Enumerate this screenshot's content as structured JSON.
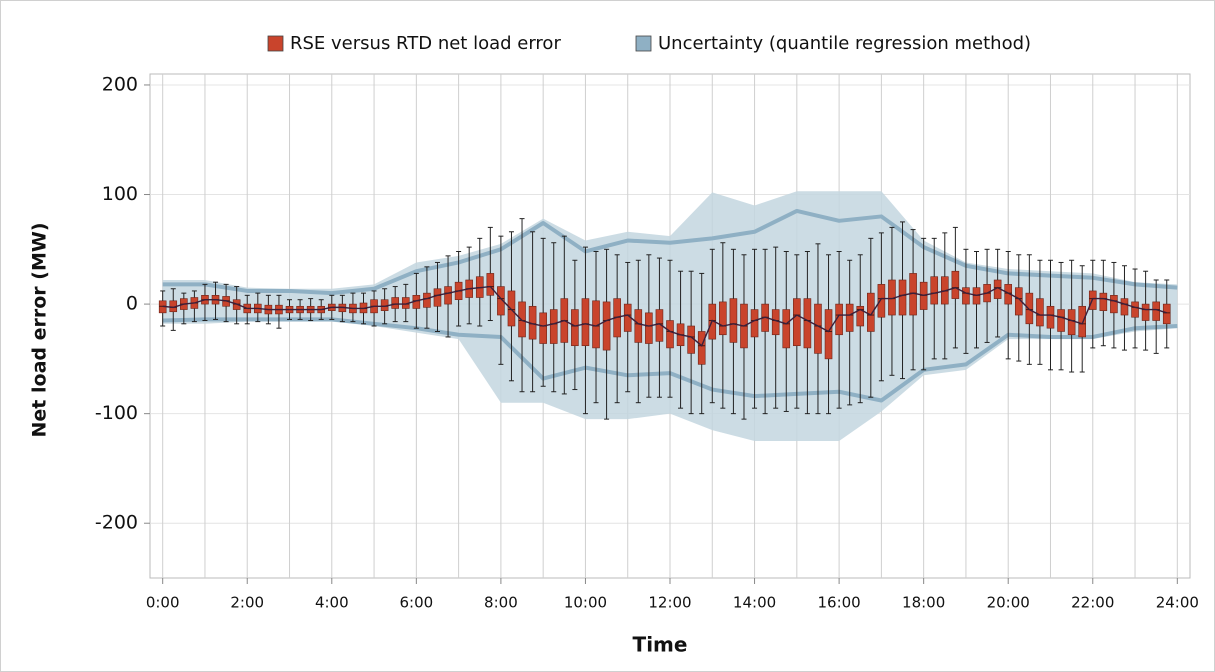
{
  "chart_data": {
    "type": "box",
    "xlabel": "Time",
    "ylabel": "Net load error (MW)",
    "xlim": [
      -0.3,
      24.3
    ],
    "ylim": [
      -250,
      210
    ],
    "xticks": [
      {
        "value": 0,
        "label": "0:00"
      },
      {
        "value": 2,
        "label": "2:00"
      },
      {
        "value": 4,
        "label": "4:00"
      },
      {
        "value": 6,
        "label": "6:00"
      },
      {
        "value": 8,
        "label": "8:00"
      },
      {
        "value": 10,
        "label": "10:00"
      },
      {
        "value": 12,
        "label": "12:00"
      },
      {
        "value": 14,
        "label": "14:00"
      },
      {
        "value": 16,
        "label": "16:00"
      },
      {
        "value": 18,
        "label": "18:00"
      },
      {
        "value": 20,
        "label": "20:00"
      },
      {
        "value": 22,
        "label": "22:00"
      },
      {
        "value": 24,
        "label": "24:00"
      }
    ],
    "xminorticks": [
      1,
      3,
      5,
      7,
      9,
      11,
      13,
      15,
      17,
      19,
      21,
      23
    ],
    "yticks": [
      -200,
      -100,
      0,
      100,
      200
    ],
    "grid": true,
    "legend": "top",
    "series": [
      {
        "name": "RSE versus RTD net load error",
        "color": "#c9442c",
        "x": [
          0,
          0.25,
          0.5,
          0.75,
          1,
          1.25,
          1.5,
          1.75,
          2,
          2.25,
          2.5,
          2.75,
          3,
          3.25,
          3.5,
          3.75,
          4,
          4.25,
          4.5,
          4.75,
          5,
          5.25,
          5.5,
          5.75,
          6,
          6.25,
          6.5,
          6.75,
          7,
          7.25,
          7.5,
          7.75,
          8,
          8.25,
          8.5,
          8.75,
          9,
          9.25,
          9.5,
          9.75,
          10,
          10.25,
          10.5,
          10.75,
          11,
          11.25,
          11.5,
          11.75,
          12,
          12.25,
          12.5,
          12.75,
          13,
          13.25,
          13.5,
          13.75,
          14,
          14.25,
          14.5,
          14.75,
          15,
          15.25,
          15.5,
          15.75,
          16,
          16.25,
          16.5,
          16.75,
          17,
          17.25,
          17.5,
          17.75,
          18,
          18.25,
          18.5,
          18.75,
          19,
          19.25,
          19.5,
          19.75,
          20,
          20.25,
          20.5,
          20.75,
          21,
          21.25,
          21.5,
          21.75,
          22,
          22.25,
          22.5,
          22.75,
          23,
          23.25,
          23.5,
          23.75
        ],
        "whislo": [
          -20,
          -24,
          -18,
          -16,
          -15,
          -14,
          -16,
          -18,
          -18,
          -16,
          -18,
          -22,
          -14,
          -14,
          -15,
          -14,
          -14,
          -16,
          -16,
          -18,
          -20,
          -18,
          -16,
          -16,
          -22,
          -22,
          -25,
          -30,
          -20,
          -18,
          -20,
          -15,
          -55,
          -70,
          -80,
          -80,
          -75,
          -80,
          -82,
          -78,
          -100,
          -90,
          -105,
          -90,
          -80,
          -90,
          -85,
          -85,
          -85,
          -95,
          -100,
          -100,
          -90,
          -95,
          -100,
          -105,
          -95,
          -100,
          -95,
          -98,
          -95,
          -100,
          -100,
          -100,
          -95,
          -92,
          -90,
          -85,
          -70,
          -65,
          -68,
          -60,
          -60,
          -50,
          -50,
          -40,
          -45,
          -40,
          -35,
          -30,
          -50,
          -52,
          -55,
          -55,
          -60,
          -60,
          -62,
          -62,
          -40,
          -38,
          -40,
          -42,
          -40,
          -42,
          -45,
          -40
        ],
        "q1": [
          -8,
          -7,
          -5,
          -4,
          0,
          0,
          -2,
          -5,
          -8,
          -8,
          -9,
          -9,
          -8,
          -8,
          -8,
          -8,
          -6,
          -7,
          -8,
          -8,
          -8,
          -6,
          -4,
          -4,
          -4,
          -3,
          -2,
          0,
          4,
          6,
          6,
          8,
          -10,
          -20,
          -30,
          -32,
          -36,
          -36,
          -35,
          -38,
          -38,
          -40,
          -42,
          -30,
          -25,
          -35,
          -36,
          -34,
          -40,
          -38,
          -45,
          -55,
          -32,
          -28,
          -35,
          -40,
          -30,
          -25,
          -28,
          -40,
          -38,
          -40,
          -45,
          -50,
          -28,
          -25,
          -20,
          -25,
          -12,
          -10,
          -10,
          -10,
          -5,
          0,
          0,
          5,
          0,
          0,
          2,
          5,
          0,
          -10,
          -18,
          -20,
          -22,
          -25,
          -28,
          -30,
          -5,
          -6,
          -8,
          -10,
          -12,
          -15,
          -15,
          -18
        ],
        "med": [
          -2,
          -3,
          0,
          1,
          4,
          4,
          3,
          0,
          -4,
          -4,
          -5,
          -5,
          -5,
          -5,
          -5,
          -5,
          -3,
          -3,
          -4,
          -4,
          -2,
          -2,
          0,
          0,
          3,
          5,
          8,
          10,
          12,
          14,
          15,
          16,
          5,
          -5,
          -15,
          -18,
          -20,
          -18,
          -15,
          -20,
          -18,
          -20,
          -15,
          -12,
          -10,
          -18,
          -20,
          -18,
          -25,
          -28,
          -30,
          -38,
          -15,
          -20,
          -18,
          -20,
          -15,
          -12,
          -15,
          -18,
          -10,
          -15,
          -20,
          -25,
          -10,
          -10,
          -5,
          -10,
          5,
          5,
          8,
          10,
          8,
          10,
          12,
          15,
          10,
          8,
          10,
          15,
          10,
          5,
          -5,
          -10,
          -10,
          -12,
          -15,
          -18,
          5,
          5,
          3,
          0,
          -3,
          -5,
          -5,
          -8
        ],
        "q3": [
          3,
          3,
          5,
          6,
          8,
          8,
          7,
          4,
          0,
          0,
          -1,
          -1,
          -2,
          -2,
          -2,
          -2,
          0,
          0,
          0,
          1,
          4,
          4,
          6,
          6,
          8,
          10,
          14,
          16,
          20,
          22,
          25,
          28,
          16,
          12,
          2,
          -2,
          -8,
          -5,
          5,
          -5,
          5,
          3,
          2,
          5,
          0,
          -5,
          -8,
          -5,
          -15,
          -18,
          -20,
          -25,
          0,
          2,
          5,
          0,
          -5,
          0,
          -5,
          -5,
          5,
          5,
          0,
          -5,
          0,
          0,
          -2,
          10,
          18,
          22,
          22,
          28,
          20,
          25,
          25,
          30,
          15,
          15,
          18,
          22,
          18,
          15,
          10,
          5,
          -2,
          -5,
          -5,
          -2,
          12,
          10,
          8,
          5,
          2,
          0,
          2,
          0
        ],
        "whishi": [
          12,
          14,
          10,
          12,
          18,
          20,
          18,
          16,
          8,
          10,
          8,
          8,
          4,
          4,
          5,
          4,
          8,
          8,
          10,
          10,
          12,
          14,
          16,
          18,
          28,
          34,
          38,
          44,
          48,
          52,
          60,
          70,
          62,
          66,
          78,
          66,
          60,
          56,
          62,
          40,
          52,
          48,
          50,
          45,
          38,
          40,
          45,
          42,
          40,
          30,
          30,
          28,
          50,
          56,
          50,
          45,
          50,
          50,
          52,
          48,
          45,
          48,
          55,
          45,
          48,
          40,
          45,
          60,
          65,
          70,
          75,
          68,
          60,
          60,
          65,
          70,
          50,
          48,
          50,
          50,
          48,
          45,
          45,
          40,
          40,
          38,
          40,
          35,
          40,
          40,
          38,
          35,
          32,
          30,
          22,
          22
        ]
      },
      {
        "name": "Uncertainty (quantile regression method)",
        "color": "#8fb0c4",
        "x": [
          0,
          1,
          2,
          3,
          4,
          5,
          6,
          7,
          8,
          9,
          10,
          11,
          12,
          13,
          14,
          15,
          16,
          17,
          18,
          19,
          20,
          21,
          22,
          23,
          24
        ],
        "band_hi": [
          22,
          22,
          15,
          14,
          14,
          18,
          38,
          44,
          55,
          78,
          58,
          66,
          62,
          102,
          90,
          103,
          103,
          103,
          58,
          38,
          32,
          30,
          28,
          20,
          18
        ],
        "band_lo": [
          -18,
          -18,
          -16,
          -16,
          -16,
          -20,
          -26,
          -32,
          -90,
          -90,
          -105,
          -105,
          -100,
          -115,
          -125,
          -125,
          -125,
          -98,
          -65,
          -60,
          -32,
          -32,
          -32,
          -25,
          -22
        ],
        "upper": [
          18,
          18,
          12,
          12,
          10,
          14,
          30,
          38,
          50,
          74,
          48,
          58,
          56,
          60,
          66,
          85,
          76,
          80,
          52,
          35,
          28,
          26,
          24,
          18,
          15
        ],
        "lower": [
          -15,
          -14,
          -14,
          -14,
          -14,
          -18,
          -22,
          -28,
          -30,
          -68,
          -58,
          -65,
          -63,
          -78,
          -84,
          -82,
          -80,
          -88,
          -60,
          -55,
          -28,
          -30,
          -30,
          -22,
          -20
        ]
      }
    ]
  }
}
